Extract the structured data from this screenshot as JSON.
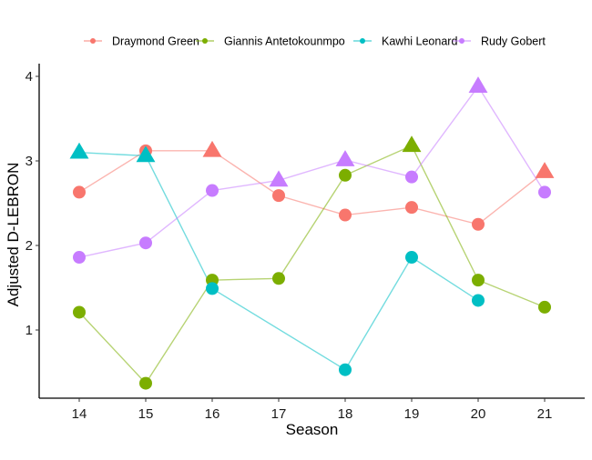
{
  "chart_data": {
    "type": "line",
    "title": "",
    "xlabel": "Season",
    "ylabel": "Adjusted D-LEBRON",
    "x": [
      14,
      15,
      16,
      17,
      18,
      19,
      20,
      21
    ],
    "x_tick_labels": [
      "14",
      "15",
      "16",
      "17",
      "18",
      "19",
      "20",
      "21"
    ],
    "y_ticks": [
      1,
      2,
      3,
      4
    ],
    "y_tick_labels": [
      "1",
      "2",
      "3",
      "4"
    ],
    "xlim": [
      13.4,
      21.6
    ],
    "ylim": [
      0.2,
      4.05
    ],
    "grid": false,
    "legend_position": "top",
    "marker_shapes_note": "circle and triangle markers per point",
    "series": [
      {
        "name": "Draymond Green",
        "color": "#F8766D",
        "points": [
          {
            "x": 14,
            "y": 2.63,
            "shape": "circle"
          },
          {
            "x": 15,
            "y": 3.12,
            "shape": "circle"
          },
          {
            "x": 16,
            "y": 3.12,
            "shape": "triangle"
          },
          {
            "x": 17,
            "y": 2.59,
            "shape": "circle"
          },
          {
            "x": 18,
            "y": 2.36,
            "shape": "circle"
          },
          {
            "x": 19,
            "y": 2.45,
            "shape": "circle"
          },
          {
            "x": 20,
            "y": 2.25,
            "shape": "circle"
          },
          {
            "x": 21,
            "y": 2.87,
            "shape": "triangle"
          }
        ]
      },
      {
        "name": "Giannis Antetokounmpo",
        "color": "#7CAE00",
        "points": [
          {
            "x": 14,
            "y": 1.21,
            "shape": "circle"
          },
          {
            "x": 15,
            "y": 0.37,
            "shape": "circle"
          },
          {
            "x": 16,
            "y": 1.59,
            "shape": "circle"
          },
          {
            "x": 17,
            "y": 1.61,
            "shape": "circle"
          },
          {
            "x": 18,
            "y": 2.83,
            "shape": "circle"
          },
          {
            "x": 19,
            "y": 3.18,
            "shape": "triangle"
          },
          {
            "x": 20,
            "y": 1.59,
            "shape": "circle"
          },
          {
            "x": 21,
            "y": 1.27,
            "shape": "circle"
          }
        ]
      },
      {
        "name": "Kawhi Leonard",
        "color": "#00BFC4",
        "points": [
          {
            "x": 14,
            "y": 3.1,
            "shape": "triangle"
          },
          {
            "x": 15,
            "y": 3.06,
            "shape": "triangle"
          },
          {
            "x": 16,
            "y": 1.49,
            "shape": "circle"
          },
          {
            "x": 18,
            "y": 0.53,
            "shape": "circle"
          },
          {
            "x": 19,
            "y": 1.86,
            "shape": "circle"
          },
          {
            "x": 20,
            "y": 1.35,
            "shape": "circle"
          }
        ]
      },
      {
        "name": "Rudy Gobert",
        "color": "#C77CFF",
        "points": [
          {
            "x": 14,
            "y": 1.86,
            "shape": "circle"
          },
          {
            "x": 15,
            "y": 2.03,
            "shape": "circle"
          },
          {
            "x": 16,
            "y": 2.65,
            "shape": "circle"
          },
          {
            "x": 17,
            "y": 2.77,
            "shape": "triangle"
          },
          {
            "x": 18,
            "y": 3.01,
            "shape": "triangle"
          },
          {
            "x": 19,
            "y": 2.81,
            "shape": "circle"
          },
          {
            "x": 20,
            "y": 3.88,
            "shape": "triangle"
          },
          {
            "x": 21,
            "y": 2.63,
            "shape": "circle"
          }
        ]
      }
    ]
  }
}
